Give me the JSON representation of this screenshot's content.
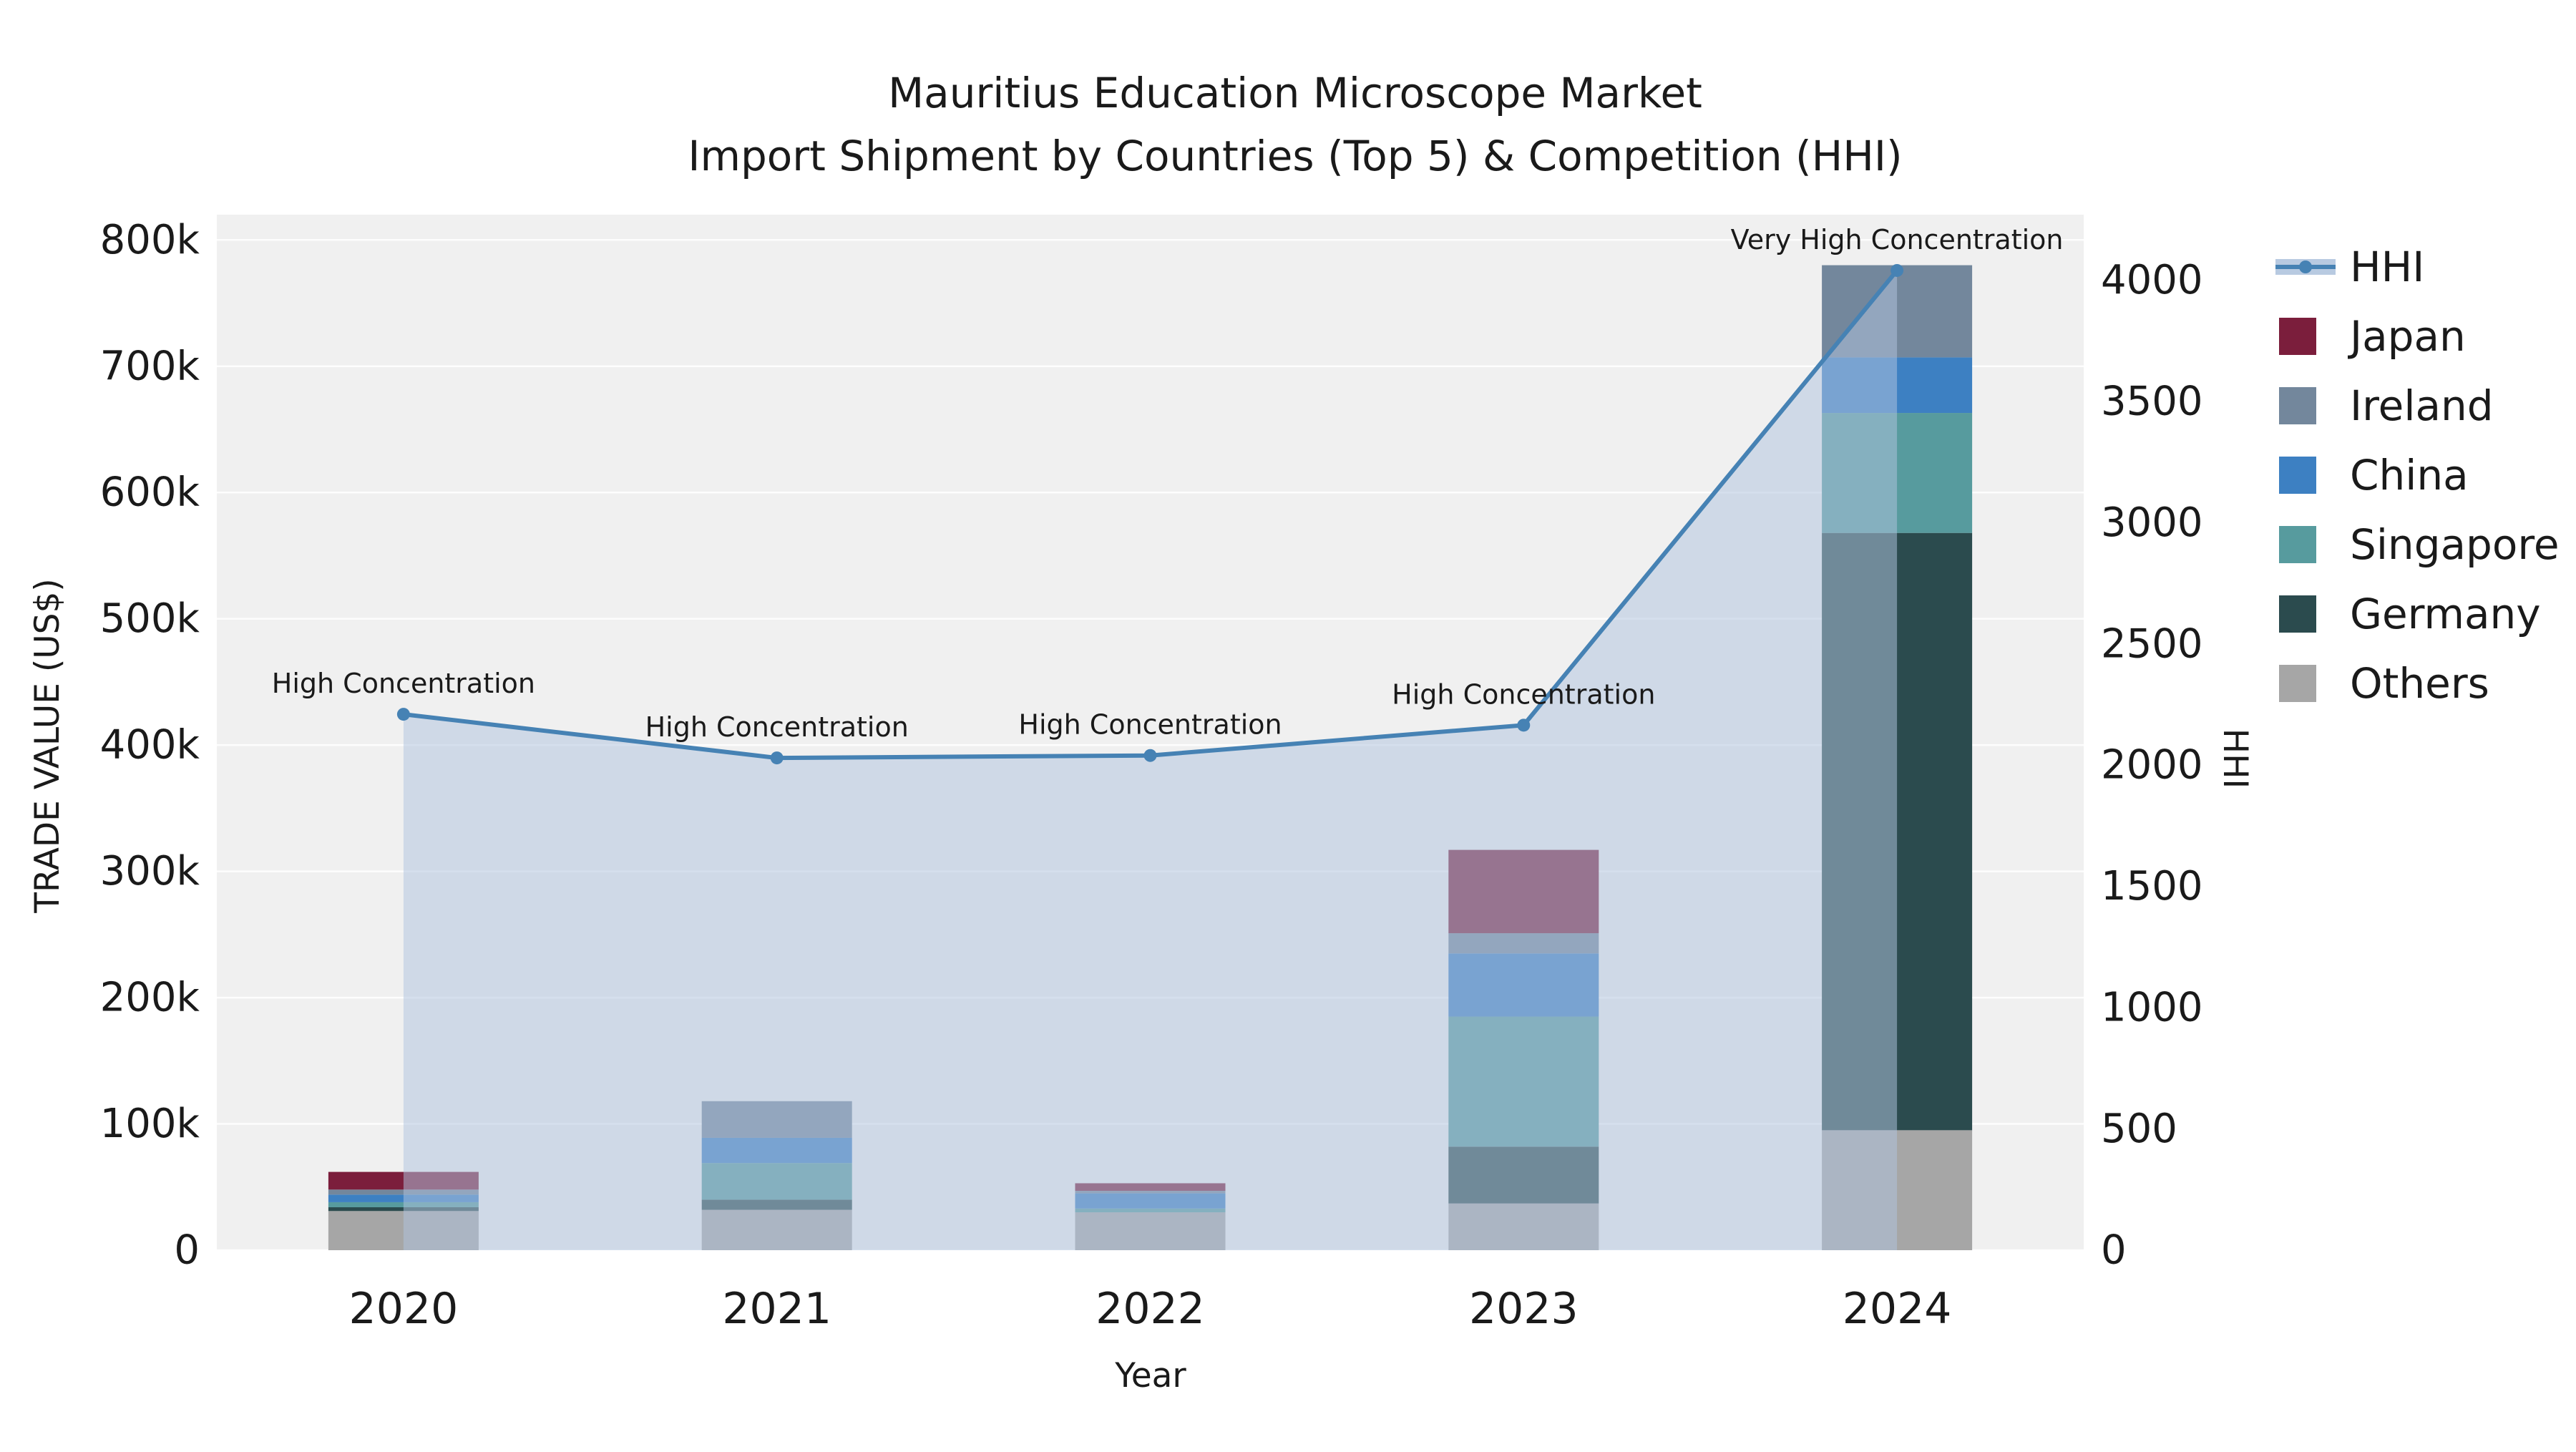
{
  "chart_data": {
    "type": "combo-stacked-bar-line",
    "title": "Mauritius Education Microscope Market",
    "subtitle": "Import Shipment by Countries (Top 5) & Competition (HHI)",
    "x_label": "Year",
    "categories": [
      "2020",
      "2021",
      "2022",
      "2023",
      "2024"
    ],
    "y_left": {
      "label": "TRADE VALUE (US$)",
      "lim": [
        0,
        820000
      ],
      "ticks": [
        0,
        100000,
        200000,
        300000,
        400000,
        500000,
        600000,
        700000,
        800000
      ],
      "tick_labels": [
        "0",
        "100k",
        "200k",
        "300k",
        "400k",
        "500k",
        "600k",
        "700k",
        "800k"
      ]
    },
    "y_right": {
      "label": "HHI",
      "lim": [
        0,
        4270
      ],
      "ticks": [
        0,
        500,
        1000,
        1500,
        2000,
        2500,
        3000,
        3500,
        4000
      ],
      "tick_labels": [
        "0",
        "500",
        "1000",
        "1500",
        "2000",
        "2500",
        "3000",
        "3500",
        "4000"
      ]
    },
    "bar_series": [
      {
        "name": "Others",
        "color": "#a6a6a6",
        "values": [
          31000,
          32000,
          30000,
          37000,
          95000
        ]
      },
      {
        "name": "Germany",
        "color": "#2b4b4e",
        "values": [
          3000,
          8000,
          0,
          45000,
          473000
        ]
      },
      {
        "name": "Singapore",
        "color": "#579b9e",
        "values": [
          4000,
          29000,
          3000,
          103000,
          95000
        ]
      },
      {
        "name": "China",
        "color": "#3d80c2",
        "values": [
          6000,
          20000,
          12000,
          50000,
          44000
        ]
      },
      {
        "name": "Ireland",
        "color": "#73879c",
        "values": [
          4000,
          29000,
          2000,
          16000,
          73000
        ]
      },
      {
        "name": "Japan",
        "color": "#7b1e3c",
        "values": [
          14000,
          0,
          6000,
          66000,
          0
        ]
      }
    ],
    "line_series": {
      "name": "HHI",
      "color": "#4682b4",
      "fill": "#b0c4de",
      "fill_opacity": 0.52,
      "values": [
        2210,
        2030,
        2040,
        2165,
        4040
      ]
    },
    "annotations": [
      "High Concentration",
      "High Concentration",
      "High Concentration",
      "High Concentration",
      "Very High Concentration"
    ],
    "legend_order": [
      "HHI",
      "Japan",
      "Ireland",
      "China",
      "Singapore",
      "Germany",
      "Others"
    ],
    "legend_position": "right",
    "grid": true,
    "plot_bg": "#f0f0f0"
  }
}
